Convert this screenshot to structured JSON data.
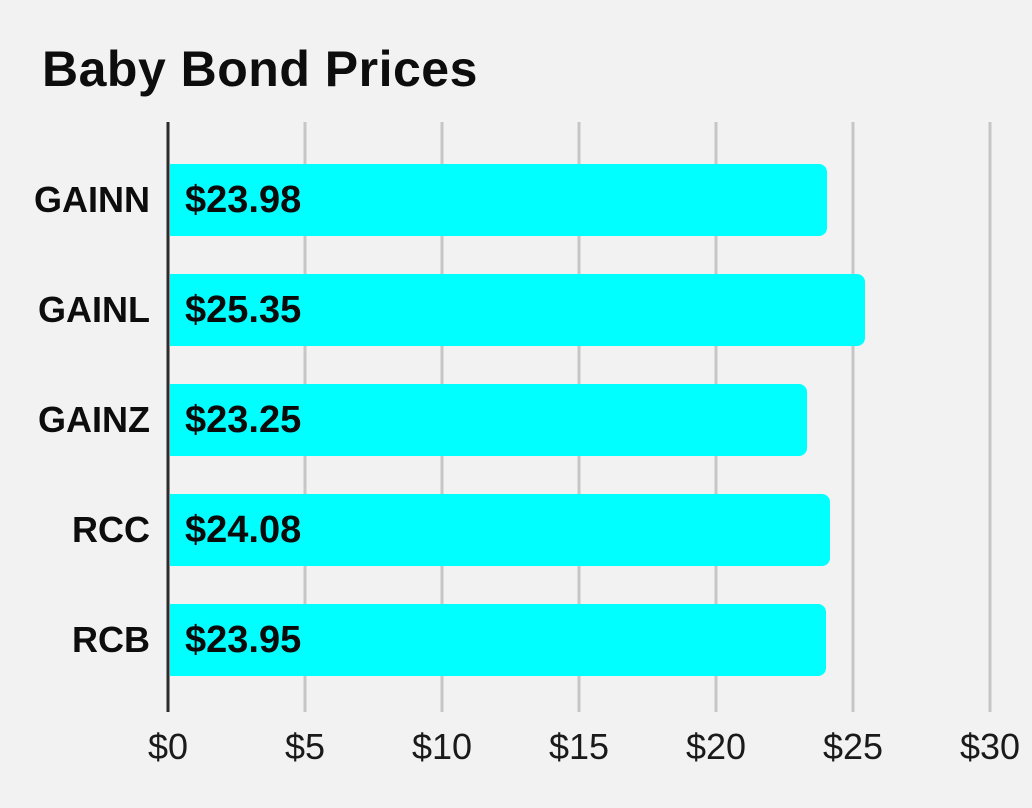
{
  "title": "Baby Bond Prices",
  "colors": {
    "background": "#f2f2f2",
    "bar": "#00ffff",
    "grid": "#c6c6c6",
    "axis": "#2b2b2b",
    "text": "#0d0d0d"
  },
  "chart_data": {
    "type": "bar",
    "orientation": "horizontal",
    "title": "Baby Bond Prices",
    "categories": [
      "GAINN",
      "GAINL",
      "GAINZ",
      "RCC",
      "RCB"
    ],
    "values": [
      23.98,
      25.35,
      23.25,
      24.08,
      23.95
    ],
    "value_labels": [
      "$23.98",
      "$25.35",
      "$23.25",
      "$24.08",
      "$23.95"
    ],
    "x_ticks": [
      0,
      5,
      10,
      15,
      20,
      25,
      30
    ],
    "x_tick_labels": [
      "$0",
      "$5",
      "$10",
      "$15",
      "$20",
      "$25",
      "$30"
    ],
    "xlim": [
      0,
      30
    ],
    "xlabel": "",
    "ylabel": "",
    "grid": true,
    "legend": false
  }
}
